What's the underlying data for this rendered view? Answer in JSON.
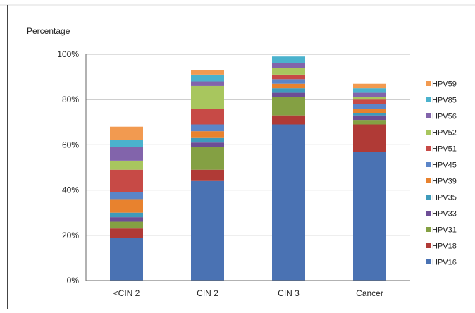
{
  "chart_data": {
    "type": "bar",
    "stacked": true,
    "title": "",
    "ylabel": "Percentage",
    "xlabel": "",
    "ylim": [
      0,
      100
    ],
    "yticks": [
      "0%",
      "20%",
      "40%",
      "60%",
      "80%",
      "100%"
    ],
    "categories": [
      "<CIN 2",
      "CIN 2",
      "CIN 3",
      "Cancer"
    ],
    "grid": true,
    "legend_position": "right",
    "series": [
      {
        "name": "HPV16",
        "color": "#4a72b3",
        "values": [
          19,
          44,
          69,
          57
        ]
      },
      {
        "name": "HPV18",
        "color": "#b03a36",
        "values": [
          4,
          5,
          4,
          12
        ]
      },
      {
        "name": "HPV31",
        "color": "#84a043",
        "values": [
          3,
          10,
          8,
          2
        ]
      },
      {
        "name": "HPV33",
        "color": "#6d4d96",
        "values": [
          2,
          2,
          2,
          2
        ]
      },
      {
        "name": "HPV35",
        "color": "#3f9bbb",
        "values": [
          2,
          2,
          2,
          1
        ]
      },
      {
        "name": "HPV39",
        "color": "#e8822e",
        "values": [
          6,
          3,
          2,
          2
        ]
      },
      {
        "name": "HPV45",
        "color": "#5b85c8",
        "values": [
          3,
          3,
          2,
          2
        ]
      },
      {
        "name": "HPV51",
        "color": "#c74a46",
        "values": [
          10,
          7,
          2,
          2
        ]
      },
      {
        "name": "HPV52",
        "color": "#a8c65e",
        "values": [
          4,
          10,
          3,
          1
        ]
      },
      {
        "name": "HPV56",
        "color": "#8264ab",
        "values": [
          6,
          2,
          2,
          2
        ]
      },
      {
        "name": "HPV85",
        "color": "#4bb2cd",
        "values": [
          3,
          3,
          3,
          2
        ]
      },
      {
        "name": "HPV59",
        "color": "#f29a50",
        "values": [
          6,
          2,
          0,
          2
        ]
      }
    ]
  }
}
